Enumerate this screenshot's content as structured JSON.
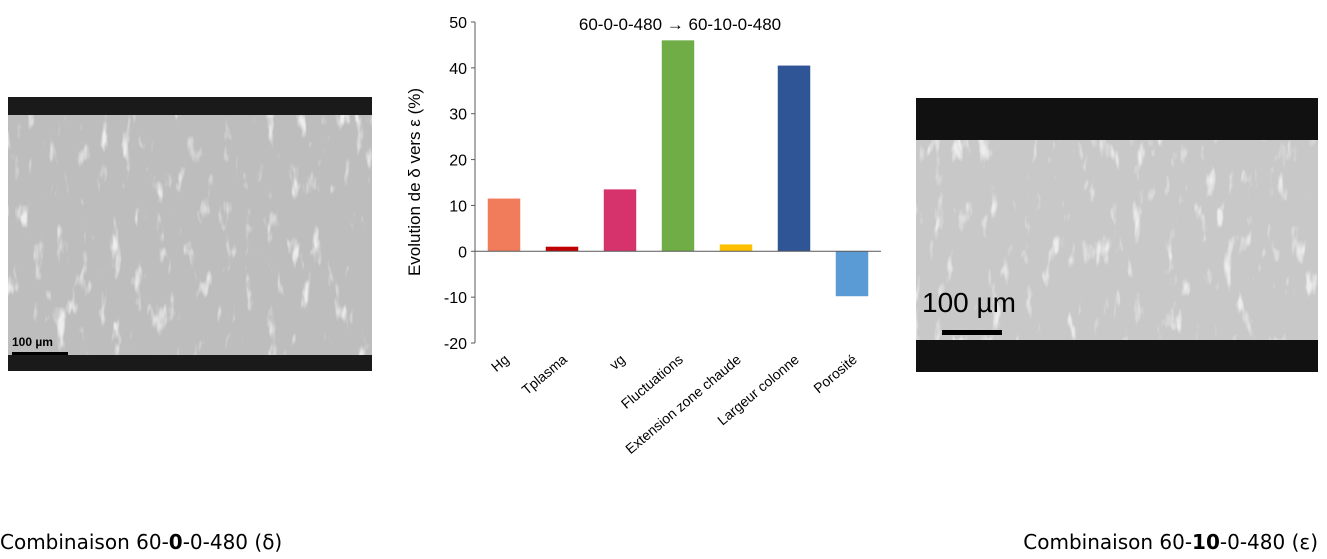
{
  "chart_data": {
    "type": "bar",
    "title": "60-0-0-480  →  60-10-0-480",
    "y_label": "Evolution de δ vers ε (%)",
    "categories": [
      "Hg",
      "Tplasma",
      "vg",
      "Fluctuations",
      "Extension zone chaude",
      "Largeur colonne",
      "Porosité"
    ],
    "values": [
      11.5,
      1,
      13.5,
      46,
      1.5,
      40.5,
      -9.8
    ],
    "colors": [
      "#f07c5c",
      "#c00000",
      "#d6336c",
      "#70ad47",
      "#ffc000",
      "#2f5597",
      "#5b9bd5"
    ],
    "ylim": [
      -20,
      50
    ],
    "yticks": [
      -20,
      -10,
      0,
      10,
      20,
      30,
      40,
      50
    ],
    "grid": false
  },
  "images": [
    {
      "scale_label": "100 µm"
    },
    {
      "scale_label": "100 µm"
    }
  ],
  "captions": [
    {
      "prefix": "Combinaison 60-",
      "bold": "0",
      "suffix": "-0-480 (δ)"
    },
    {
      "prefix": "Combinaison 60-",
      "bold": "10",
      "suffix": "-0-480 (ε)"
    }
  ]
}
